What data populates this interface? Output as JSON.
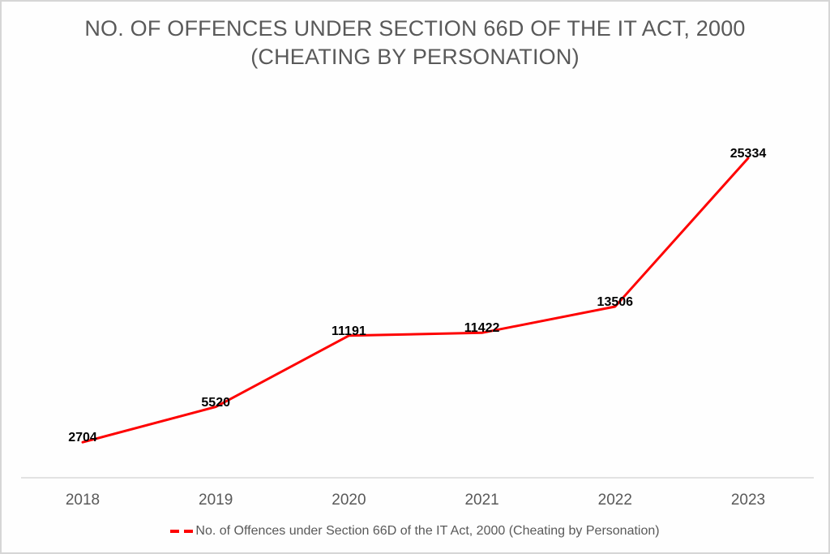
{
  "chart_data": {
    "type": "line",
    "title": "NO. OF OFFENCES UNDER SECTION 66D OF THE IT ACT, 2000 (CHEATING BY PERSONATION)",
    "categories": [
      "2018",
      "2019",
      "2020",
      "2021",
      "2022",
      "2023"
    ],
    "series": [
      {
        "name": "No. of Offences under Section 66D of the IT Act, 2000 (Cheating by Personation)",
        "values": [
          2704,
          5520,
          11191,
          11422,
          13506,
          25334
        ]
      }
    ],
    "xlabel": "",
    "ylabel": "",
    "ylim": [
      0,
      26000
    ],
    "grid": false,
    "y_axis_visible": false,
    "data_labels_visible": true,
    "legend_position": "bottom",
    "legend_marker": "red-dashes",
    "colors": {
      "line": "#fe0000",
      "axis_line": "#d9d9d9",
      "title_text": "#595959",
      "axis_text": "#595959",
      "legend_text": "#595959",
      "data_label_text": "#000000",
      "background": "#ffffff",
      "frame_border": "#d6d6d6"
    }
  }
}
